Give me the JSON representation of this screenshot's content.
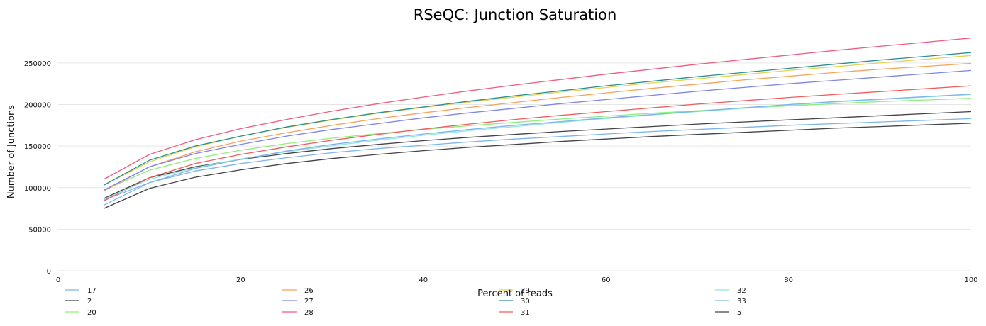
{
  "chart_data": {
    "type": "line",
    "title": "RSeQC: Junction Saturation",
    "xlabel": "Percent of reads",
    "ylabel": "Number of Junctions",
    "xlim": [
      0,
      100
    ],
    "ylim": [
      0,
      290000
    ],
    "x_ticks": [
      0,
      20,
      40,
      60,
      80,
      100
    ],
    "y_ticks": [
      0,
      50000,
      100000,
      150000,
      200000,
      250000
    ],
    "grid": "horizontal",
    "legend_position": "bottom",
    "x": [
      5,
      10,
      15,
      20,
      25,
      30,
      35,
      40,
      45,
      50,
      55,
      60,
      65,
      70,
      75,
      80,
      85,
      90,
      95,
      100
    ],
    "series": [
      {
        "name": "17",
        "color": "#7cb5ec",
        "values": [
          85000,
          106000,
          120000,
          129000,
          136000,
          142000,
          147000,
          151000,
          155000,
          158500,
          161500,
          164500,
          167500,
          170000,
          172500,
          175000,
          177000,
          179000,
          181000,
          183000
        ]
      },
      {
        "name": "2",
        "color": "#434348",
        "values": [
          87000,
          112000,
          125000,
          134000,
          141000,
          147000,
          152000,
          156500,
          160500,
          164000,
          167500,
          170500,
          173500,
          176500,
          179000,
          181500,
          184000,
          186500,
          189000,
          191500
        ]
      },
      {
        "name": "20",
        "color": "#90ed7d",
        "values": [
          97000,
          121000,
          135000,
          145000,
          153000,
          159500,
          165000,
          170000,
          174500,
          178500,
          182500,
          186000,
          189500,
          192500,
          195500,
          198500,
          201000,
          203500,
          205500,
          207500
        ]
      },
      {
        "name": "26",
        "color": "#f7a35c",
        "values": [
          96000,
          125000,
          143000,
          156000,
          166000,
          175000,
          183000,
          190000,
          196500,
          202500,
          208500,
          214000,
          219500,
          224500,
          229500,
          234000,
          238500,
          242500,
          246000,
          249500
        ]
      },
      {
        "name": "27",
        "color": "#8085e9",
        "values": [
          97000,
          125000,
          141000,
          152000,
          162000,
          170000,
          177000,
          184000,
          190000,
          195500,
          201000,
          206000,
          211000,
          216000,
          220500,
          225000,
          229000,
          233000,
          237000,
          241000
        ]
      },
      {
        "name": "28",
        "color": "#f15c80",
        "values": [
          110000,
          140000,
          157500,
          171000,
          182000,
          192000,
          201000,
          209000,
          216500,
          223500,
          230000,
          236500,
          242500,
          248500,
          254000,
          259500,
          265000,
          270000,
          275000,
          280000
        ]
      },
      {
        "name": "29",
        "color": "#e4d354",
        "values": [
          103000,
          131000,
          149000,
          162000,
          172500,
          181500,
          189500,
          196500,
          203000,
          209000,
          215000,
          220500,
          226000,
          231000,
          236000,
          241000,
          245500,
          250000,
          254500,
          259000
        ]
      },
      {
        "name": "30",
        "color": "#2b908f",
        "values": [
          103000,
          133000,
          150000,
          162000,
          173000,
          182000,
          190000,
          197000,
          204000,
          210500,
          216500,
          222500,
          228000,
          233500,
          238500,
          243500,
          248500,
          253500,
          258000,
          262500
        ]
      },
      {
        "name": "31",
        "color": "#f45b5b",
        "values": [
          84000,
          112000,
          129000,
          140000,
          149000,
          157000,
          164000,
          170500,
          176500,
          182000,
          187000,
          191500,
          196000,
          200500,
          204500,
          208500,
          212000,
          215500,
          219000,
          222500
        ]
      },
      {
        "name": "32",
        "color": "#91e8e1",
        "values": [
          86000,
          110000,
          124000,
          134500,
          143000,
          150500,
          157000,
          163000,
          168500,
          173500,
          178500,
          183000,
          187500,
          191500,
          195500,
          199500,
          203000,
          206000,
          209000,
          212000
        ]
      },
      {
        "name": "33",
        "color": "#7cb5ec",
        "values": [
          79000,
          106000,
          123000,
          134000,
          144000,
          152000,
          158500,
          164500,
          170000,
          175000,
          179500,
          184000,
          188000,
          192000,
          196000,
          200000,
          203500,
          206500,
          209500,
          212500
        ]
      },
      {
        "name": "5",
        "color": "#434348",
        "values": [
          75000,
          99000,
          112500,
          121500,
          129000,
          135000,
          140000,
          144500,
          148500,
          152000,
          155500,
          158500,
          161500,
          164000,
          166500,
          169000,
          171500,
          173500,
          175500,
          177500
        ]
      }
    ]
  }
}
